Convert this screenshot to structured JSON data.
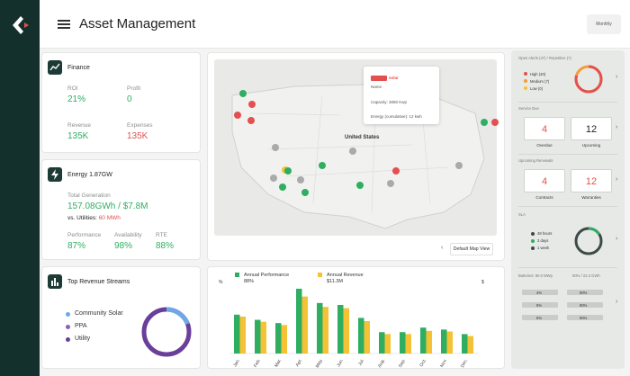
{
  "header": {
    "title": "Asset Management",
    "period_button": "Monthly"
  },
  "finance": {
    "title": "Finance",
    "roi_label": "ROI",
    "roi_value": "21%",
    "profit_label": "Profit",
    "profit_value": "0",
    "revenue_label": "Revenue",
    "revenue_value": "135K",
    "expenses_label": "Expenses",
    "expenses_value": "135K"
  },
  "energy": {
    "title": "Energy 1.87GW",
    "total_label": "Total Generation",
    "total_value": "157.08GWh / $7.8M",
    "vs_label": "vs. Utilities:",
    "vs_value": "60 MWh",
    "performance_label": "Performance",
    "performance_value": "87%",
    "availability_label": "Availability",
    "availability_value": "98%",
    "rte_label": "RTE",
    "rte_value": "88%"
  },
  "revenue_streams": {
    "title": "Top Revenue Streams",
    "items": [
      {
        "label": "Community Solar",
        "color": "#6ea8e8"
      },
      {
        "label": "PPA",
        "color": "#8b5fb8"
      },
      {
        "label": "Utility",
        "color": "#6a3f9a"
      }
    ]
  },
  "map": {
    "country_label": "United States",
    "view_button": "Default Map View",
    "popup": {
      "brand": "solar",
      "name": "Name",
      "capacity": "Capacity: 3060 Kwp",
      "energy": "Energy (cumulative): 12 kwh"
    }
  },
  "chart_data": {
    "type": "bar",
    "categories": [
      "Jan",
      "Feb",
      "Mar",
      "Apr",
      "May",
      "Jun",
      "Jul",
      "Aug",
      "Sep",
      "Oct",
      "Nov",
      "Dec"
    ],
    "series": [
      {
        "name": "Annual Performance",
        "values": [
          60,
          52,
          47,
          100,
          78,
          75,
          55,
          33,
          33,
          40,
          37,
          30
        ],
        "color": "#2fae62"
      },
      {
        "name": "Annual Revenue",
        "values": [
          57,
          49,
          44,
          88,
          72,
          70,
          50,
          30,
          30,
          35,
          34,
          27
        ],
        "color": "#f4c234"
      }
    ],
    "legend_values": [
      "88%",
      "$11.3M"
    ],
    "ylabel_left": "%",
    "ylabel_right": "$",
    "ylim": [
      0,
      100
    ]
  },
  "right_panel": {
    "alerts": {
      "title": "Open Alerts (47) / Repetitive (7)",
      "items": [
        {
          "label": "High (40)",
          "color": "#e4504f"
        },
        {
          "label": "Medium (7)",
          "color": "#f49c3a"
        },
        {
          "label": "Low (0)",
          "color": "#f4c234"
        }
      ]
    },
    "tasks": {
      "title": "Service Due",
      "overdue_value": "4",
      "overdue_label": "Overdue",
      "upcoming_value": "12",
      "upcoming_label": "Upcoming"
    },
    "renewals": {
      "title": "Upcoming Renewals",
      "contracts_value": "4",
      "contracts_label": "Contracts",
      "warranties_value": "12",
      "warranties_label": "Warranties"
    },
    "sla": {
      "title": "SLA",
      "items": [
        {
          "label": "48 hours",
          "color": "#3d4a47"
        },
        {
          "label": "3 days",
          "color": "#2fae62"
        },
        {
          "label": "1 week",
          "color": "#3d4a47"
        }
      ]
    },
    "batteries": {
      "title": "Batteries: 90.0 MWp",
      "highlight": "90% / 22.3 GWh",
      "bars": [
        "4%",
        "90%",
        "5%",
        "90%",
        "5%",
        "90%"
      ]
    }
  }
}
